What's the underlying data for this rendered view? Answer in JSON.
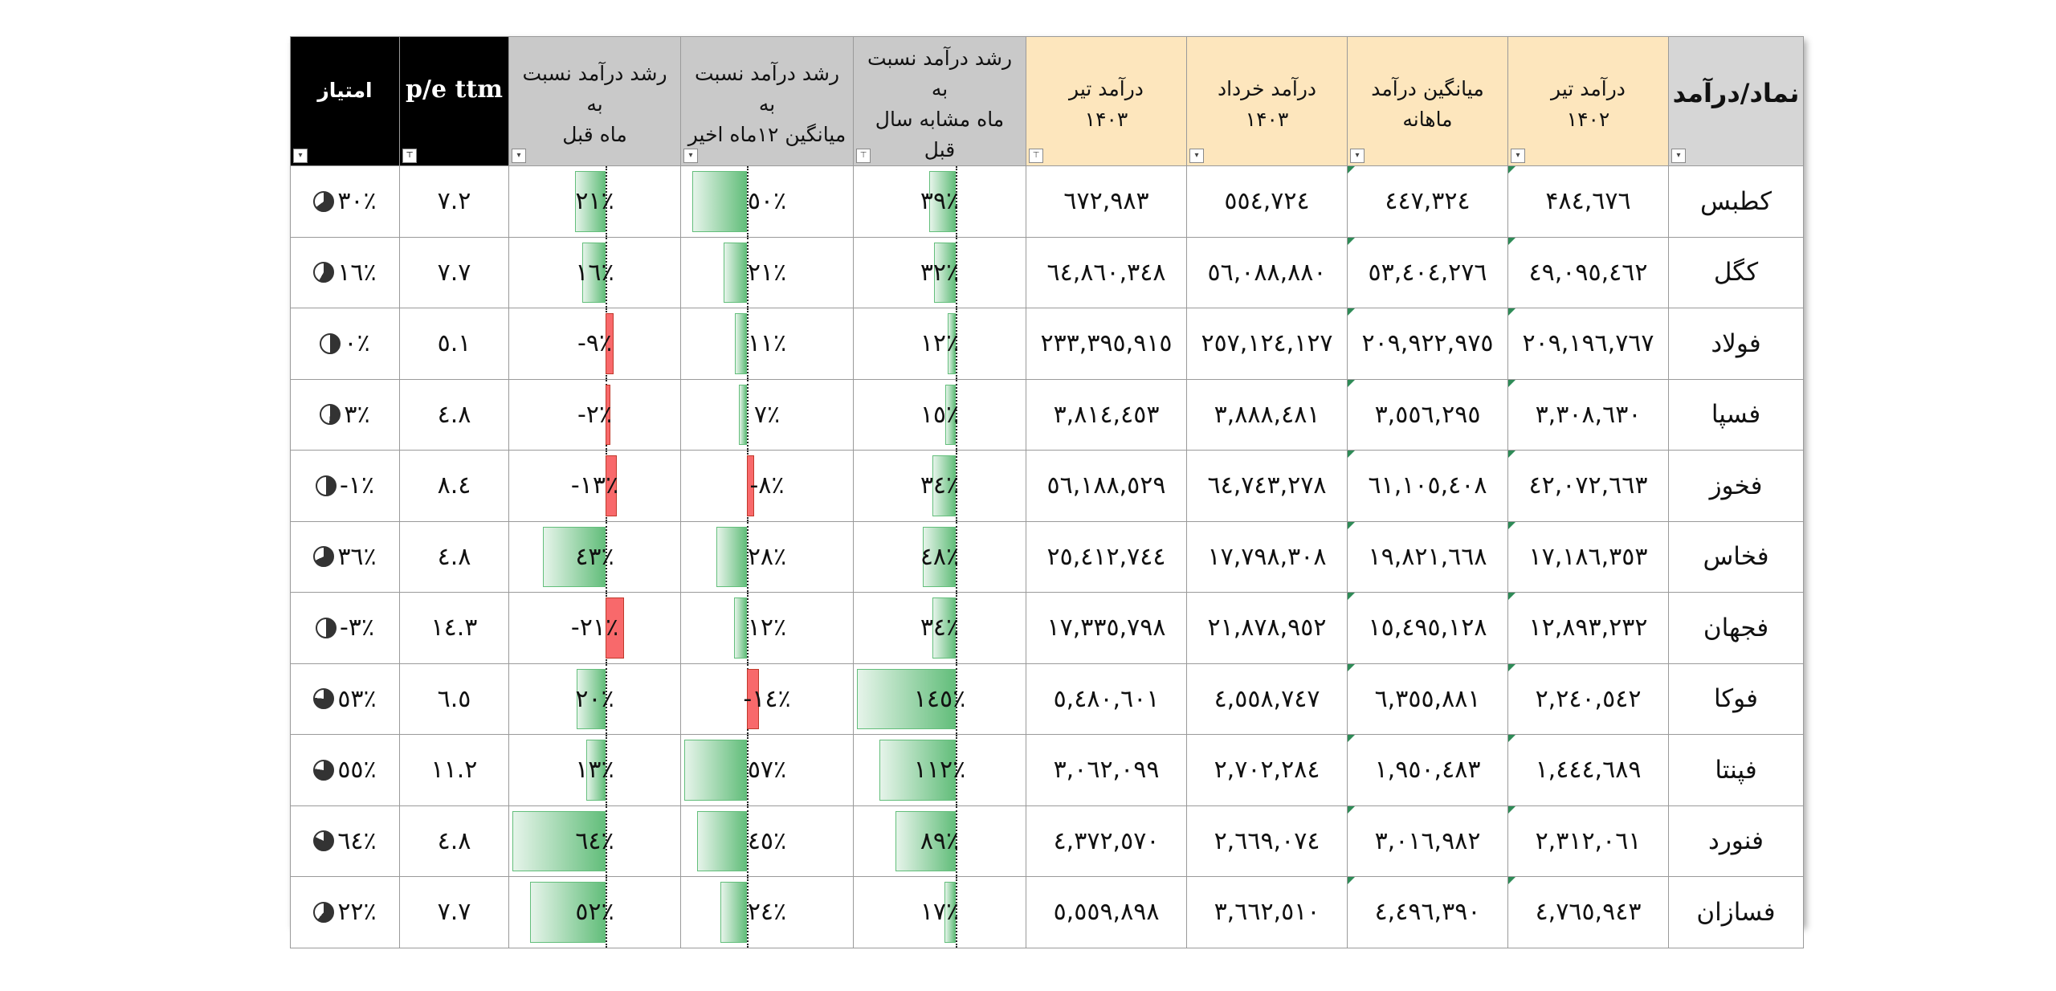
{
  "headers": {
    "symbol": "نماد/درآمد",
    "tir1402": [
      "درآمد تیر",
      "۱۴۰۲"
    ],
    "monthly_avg": [
      "میانگین درآمد",
      "ماهانه"
    ],
    "khordad1403": [
      "درآمد خرداد",
      "۱۴۰۳"
    ],
    "tir1403": [
      "درآمد تیر",
      "۱۴۰۳"
    ],
    "growth_yoy": [
      "رشد درآمد  نسبت به",
      "ماه مشابه سال قبل"
    ],
    "growth_12m": [
      "رشد درآمد نسبت به",
      "میانگین ۱۲ماه اخیر"
    ],
    "growth_mom": [
      "رشد درآمد  نسبت به",
      "ماه قبل"
    ],
    "pe": "p/e ttm",
    "score": "امتیاز"
  },
  "rows": [
    {
      "symbol": "کطبس",
      "tir1402": "۴۸٤,٦٧٦",
      "avg": "٤٤٧,٣٢٤",
      "khordad": "٥٥٤,٧٢٤",
      "tir1403": "٦٧٢,٩٨٣",
      "yoy_label": "۳۹٪",
      "yoy": 39,
      "m12_label": "٥٠٪",
      "m12": 50,
      "mom_label": "۲۱٪",
      "mom": 21,
      "pe": "۷.۲",
      "score_label": "٣٠٪",
      "score": 30
    },
    {
      "symbol": "کگل",
      "tir1402": "٤٩,٠٩٥,٤٦٢",
      "avg": "٥٣,٤٠٤,٢٧٦",
      "khordad": "٥٦,٠٨٨,٨٨٠",
      "tir1403": "٦٤,٨٦٠,٣٤٨",
      "yoy_label": "٣٢٪",
      "yoy": 32,
      "m12_label": "٢١٪",
      "m12": 21,
      "mom_label": "١٦٪",
      "mom": 16,
      "pe": "۷.۷",
      "score_label": "١٦٪",
      "score": 16
    },
    {
      "symbol": "فولاد",
      "tir1402": "٢٠٩,١٩٦,٧٦٧",
      "avg": "٢٠٩,٩٢٢,٩٧٥",
      "khordad": "٢٥٧,١٢٤,١٢٧",
      "tir1403": "٢٣٣,٣٩٥,٩١٥",
      "yoy_label": "١٢٪",
      "yoy": 12,
      "m12_label": "١١٪",
      "m12": 11,
      "mom_label": "-٩٪",
      "mom": -9,
      "pe": "٥.١",
      "score_label": "٠٪",
      "score": 0
    },
    {
      "symbol": "فسپا",
      "tir1402": "٣,٣٠٨,٦٣٠",
      "avg": "٣,٥٥٦,٢٩٥",
      "khordad": "٣,٨٨٨,٤٨١",
      "tir1403": "٣,٨١٤,٤٥٣",
      "yoy_label": "١٥٪",
      "yoy": 15,
      "m12_label": "٧٪",
      "m12": 7,
      "mom_label": "-٢٪",
      "mom": -2,
      "pe": "٤.٨",
      "score_label": "٣٪",
      "score": 3
    },
    {
      "symbol": "فخوز",
      "tir1402": "٤٢,٠٧٢,٦٦٣",
      "avg": "٦١,١٠٥,٤٠٨",
      "khordad": "٦٤,٧٤٣,٢٧٨",
      "tir1403": "٥٦,١٨٨,٥٢٩",
      "yoy_label": "٣٤٪",
      "yoy": 34,
      "m12_label": "-٨٪",
      "m12": -8,
      "mom_label": "-١٣٪",
      "mom": -13,
      "pe": "٨.٤",
      "score_label": "-١٪",
      "score": -1
    },
    {
      "symbol": "فخاس",
      "tir1402": "١٧,١٨٦,٣٥٣",
      "avg": "١٩,٨٢١,٦٦٨",
      "khordad": "١٧,٧٩٨,٣٠٨",
      "tir1403": "٢٥,٤١٢,٧٤٤",
      "yoy_label": "٤٨٪",
      "yoy": 48,
      "m12_label": "٢٨٪",
      "m12": 28,
      "mom_label": "٤٣٪",
      "mom": 43,
      "pe": "٤.٨",
      "score_label": "٣٦٪",
      "score": 36
    },
    {
      "symbol": "فجهان",
      "tir1402": "١٢,٨٩٣,٢٣٢",
      "avg": "١٥,٤٩٥,١٢٨",
      "khordad": "٢١,٨٧٨,٩٥٢",
      "tir1403": "١٧,٣٣٥,٧٩٨",
      "yoy_label": "٣٤٪",
      "yoy": 34,
      "m12_label": "١٢٪",
      "m12": 12,
      "mom_label": "-٢١٪",
      "mom": -21,
      "pe": "١٤.٣",
      "score_label": "-٣٪",
      "score": -3
    },
    {
      "symbol": "فوکا",
      "tir1402": "٢,٢٤٠,٥٤٢",
      "avg": "٦,٣٥٥,٨٨١",
      "khordad": "٤,٥٥٨,٧٤٧",
      "tir1403": "٥,٤٨٠,٦٠١",
      "yoy_label": "١٤٥٪",
      "yoy": 145,
      "m12_label": "-١٤٪",
      "m12": -14,
      "mom_label": "٢٠٪",
      "mom": 20,
      "pe": "٦.٥",
      "score_label": "٥٣٪",
      "score": 53
    },
    {
      "symbol": "فپنتا",
      "tir1402": "١,٤٤٤,٦٨٩",
      "avg": "١,٩٥٠,٤٨٣",
      "khordad": "٢,٧٠٢,٢٨٤",
      "tir1403": "٣,٠٦٢,٠٩٩",
      "yoy_label": "١١٢٪",
      "yoy": 112,
      "m12_label": "٥٧٪",
      "m12": 57,
      "mom_label": "١٣٪",
      "mom": 13,
      "pe": "١١.٢",
      "score_label": "٥٥٪",
      "score": 55
    },
    {
      "symbol": "فنورد",
      "tir1402": "٢,٣١٢,٠٦١",
      "avg": "٣,٠١٦,٩٨٢",
      "khordad": "٢,٦٦٩,٠٧٤",
      "tir1403": "٤,٣٧٢,٥٧٠",
      "yoy_label": "٨٩٪",
      "yoy": 89,
      "m12_label": "٤٥٪",
      "m12": 45,
      "mom_label": "٦٤٪",
      "mom": 64,
      "pe": "٤.٨",
      "score_label": "٦٤٪",
      "score": 64
    },
    {
      "symbol": "فسازان",
      "tir1402": "٤,٧٦٥,٩٤٣",
      "avg": "٤,٤٩٦,٣٩٠",
      "khordad": "٣,٦٦٢,٥١٠",
      "tir1403": "٥,٥٥٩,٨٩٨",
      "yoy_label": "١٧٪",
      "yoy": 17,
      "m12_label": "٢٤٪",
      "m12": 24,
      "mom_label": "٥٢٪",
      "mom": 52,
      "pe": "۷.۷",
      "score_label": "٢٢٪",
      "score": 22
    }
  ]
}
